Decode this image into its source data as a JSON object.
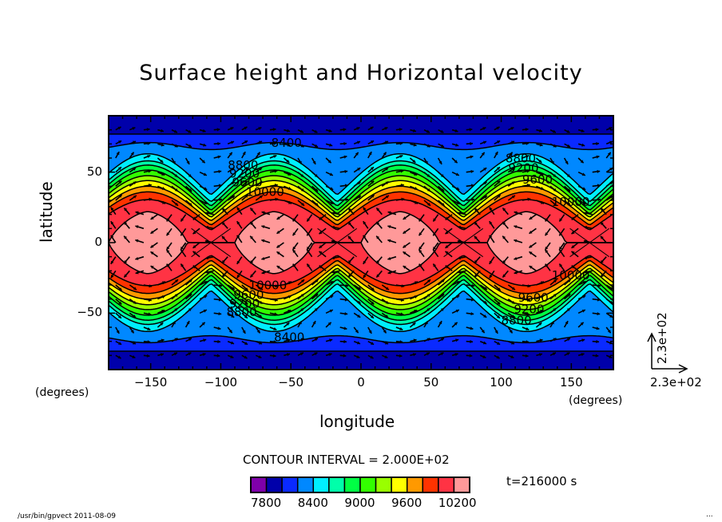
{
  "chart_data": {
    "type": "heatmap",
    "subtype": "filled-contour-with-vectors",
    "title": "Surface height and Horizontal velocity",
    "xlabel": "longitude",
    "ylabel": "latitude",
    "x_units_label": "(degrees)",
    "y_units_label": "(degrees)",
    "xlim": [
      -180,
      180
    ],
    "ylim": [
      -90,
      90
    ],
    "xticks": [
      -150,
      -100,
      -50,
      0,
      50,
      100,
      150
    ],
    "yticks": [
      -50,
      0,
      50
    ],
    "xtick_labels": [
      "−150",
      "−100",
      "−50",
      "0",
      "50",
      "100",
      "150"
    ],
    "ytick_labels": [
      "−50",
      "0",
      "50"
    ],
    "contour_interval_label": "CONTOUR INTERVAL = 2.000E+02",
    "contour_interval": 200,
    "colorbar": {
      "levels": [
        7800,
        8000,
        8200,
        8400,
        8600,
        8800,
        9000,
        9200,
        9400,
        9600,
        9800,
        10000,
        10200,
        10400
      ],
      "colors": [
        "#7f00aa",
        "#0000aa",
        "#0a2aff",
        "#0088ff",
        "#00eeff",
        "#00ffaa",
        "#00ff44",
        "#33ff00",
        "#99ff00",
        "#ffff00",
        "#ff9900",
        "#ff3300",
        "#ff3344",
        "#ff9999"
      ],
      "tick_labels": [
        "7800",
        "8400",
        "9000",
        "9600",
        "10200"
      ]
    },
    "wave_number": 4,
    "ridge_longitudes": [
      -152,
      -62,
      28,
      118
    ],
    "contour_profiles": [
      {
        "level": 8200,
        "lat_ridge": 77,
        "lat_trough": 77
      },
      {
        "level": 8400,
        "lat_ridge": 71,
        "lat_trough": 66
      },
      {
        "level": 8600,
        "lat_ridge": 63,
        "lat_trough": 34
      },
      {
        "level": 8800,
        "lat_ridge": 58,
        "lat_trough": 29
      },
      {
        "level": 9000,
        "lat_ridge": 55,
        "lat_trough": 26
      },
      {
        "level": 9200,
        "lat_ridge": 51.5,
        "lat_trough": 23
      },
      {
        "level": 9400,
        "lat_ridge": 47.5,
        "lat_trough": 20.5
      },
      {
        "level": 9600,
        "lat_ridge": 44,
        "lat_trough": 18
      },
      {
        "level": 9800,
        "lat_ridge": 40,
        "lat_trough": 15.5
      },
      {
        "level": 10000,
        "lat_ridge": 36,
        "lat_trough": 12.5
      },
      {
        "level": 10200,
        "lat_ridge": 30.5,
        "lat_trough": 9
      },
      {
        "level": 10400,
        "lat_ridge": 22,
        "lat_trough": 0
      }
    ],
    "symmetric_about_equator": true,
    "contour_labels": [
      {
        "text": "8400",
        "lon": -64,
        "lat": 68
      },
      {
        "text": "8800",
        "lon": -95,
        "lat": 52
      },
      {
        "text": "9200",
        "lon": -94,
        "lat": 46
      },
      {
        "text": "9600",
        "lon": -92,
        "lat": 40
      },
      {
        "text": "10000",
        "lon": -82,
        "lat": 33
      },
      {
        "text": "8800",
        "lon": 103,
        "lat": 57
      },
      {
        "text": "9200",
        "lon": 105,
        "lat": 50
      },
      {
        "text": "9600",
        "lon": 115,
        "lat": 42
      },
      {
        "text": "10000",
        "lon": 136,
        "lat": 26
      },
      {
        "text": "10000",
        "lon": -80,
        "lat": -33
      },
      {
        "text": "9600",
        "lon": -91,
        "lat": -40
      },
      {
        "text": "9200",
        "lon": -94,
        "lat": -46
      },
      {
        "text": "8800",
        "lon": -96,
        "lat": -52
      },
      {
        "text": "8400",
        "lon": -62,
        "lat": -70
      },
      {
        "text": "10000",
        "lon": 136,
        "lat": -26
      },
      {
        "text": "9600",
        "lon": 112,
        "lat": -42
      },
      {
        "text": "9200",
        "lon": 109,
        "lat": -50
      },
      {
        "text": "8800",
        "lon": 100,
        "lat": -58
      }
    ],
    "vector_reference": {
      "x_label": "2.3e+02",
      "y_label": "2.3e+02"
    },
    "annotation_time": "t=216000 s"
  },
  "footer": {
    "program": "/usr/bin/gpvect  2011-08-09",
    "right_mark": "..."
  }
}
